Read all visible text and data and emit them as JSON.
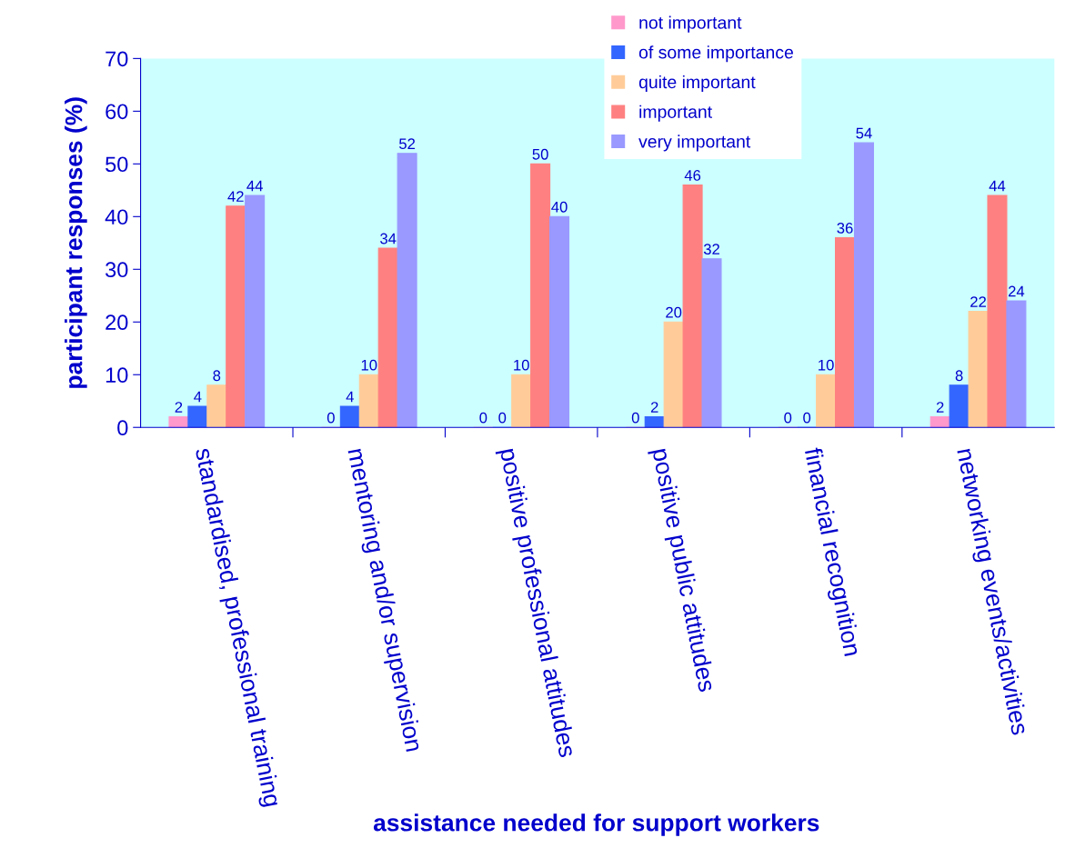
{
  "chart_data": {
    "type": "bar",
    "xlabel": "assistance needed for support workers",
    "ylabel": "participant responses (%)",
    "categories": [
      "standardised, professional training",
      "mentoring and/or supervision",
      "positive professional attitudes",
      "positive public attitudes",
      "financial recognition",
      "networking events/activities"
    ],
    "series": [
      {
        "name": "not important",
        "color": "#ff99cc",
        "values": [
          2,
          0,
          0,
          0,
          0,
          2
        ]
      },
      {
        "name": "of some importance",
        "color": "#3366ff",
        "values": [
          4,
          4,
          0,
          2,
          0,
          8
        ]
      },
      {
        "name": "quite important",
        "color": "#ffcc99",
        "values": [
          8,
          10,
          10,
          20,
          10,
          22
        ]
      },
      {
        "name": "important",
        "color": "#ff8080",
        "values": [
          42,
          34,
          50,
          46,
          36,
          44
        ]
      },
      {
        "name": "very important",
        "color": "#9999ff",
        "values": [
          44,
          52,
          40,
          32,
          54,
          24
        ]
      }
    ],
    "ylim": [
      0,
      70
    ],
    "yticks": [
      0,
      10,
      20,
      30,
      40,
      50,
      60,
      70
    ],
    "grid": false,
    "legend": "top",
    "data_labels": true
  }
}
